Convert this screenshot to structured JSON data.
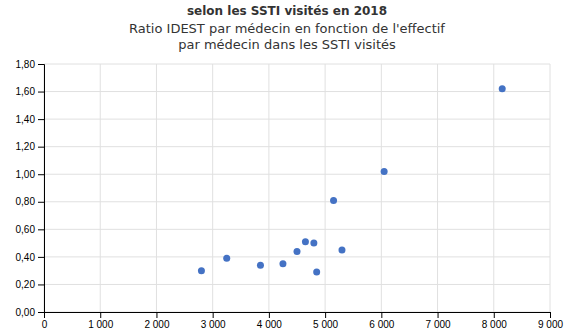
{
  "chart_data": {
    "type": "scatter",
    "title": "Ratio IDEST par médecin en fonction de l'effectif\npar médecin dans les SSTI visités",
    "subtitle": "selon les SSTI visités en 2018",
    "x": [
      2800,
      3250,
      3850,
      4250,
      4500,
      4650,
      4800,
      4850,
      5150,
      5300,
      6050,
      8150
    ],
    "values": [
      0.3,
      0.39,
      0.34,
      0.35,
      0.44,
      0.51,
      0.5,
      0.29,
      0.81,
      0.45,
      1.02,
      1.62
    ],
    "color": "#4472C4",
    "xlim": [
      0,
      9000
    ],
    "ylim": [
      0.0,
      1.8
    ],
    "xticks": [
      0,
      {
        "value": 1000,
        "label": "1 000"
      },
      {
        "value": 2000,
        "label": "2 000"
      },
      {
        "value": 3000,
        "label": "3 000"
      },
      {
        "value": 4000,
        "label": "4 000"
      },
      {
        "value": 5000,
        "label": "5 000"
      },
      {
        "value": 6000,
        "label": "6 000"
      },
      {
        "value": 7000,
        "label": "7 000"
      },
      {
        "value": 8000,
        "label": "8 000"
      },
      {
        "value": 9000,
        "label": "9 000"
      }
    ],
    "yticks": [
      {
        "value": 0.0,
        "label": "0,00"
      },
      {
        "value": 0.2,
        "label": "0,20"
      },
      {
        "value": 0.4,
        "label": "0,40"
      },
      {
        "value": 0.6,
        "label": "0,60"
      },
      {
        "value": 0.8,
        "label": "0,80"
      },
      {
        "value": 1.0,
        "label": "1,00"
      },
      {
        "value": 1.2,
        "label": "1,20"
      },
      {
        "value": 1.4,
        "label": "1,40"
      },
      {
        "value": 1.6,
        "label": "1,60"
      },
      {
        "value": 1.8,
        "label": "1,80"
      }
    ],
    "grid": true
  }
}
